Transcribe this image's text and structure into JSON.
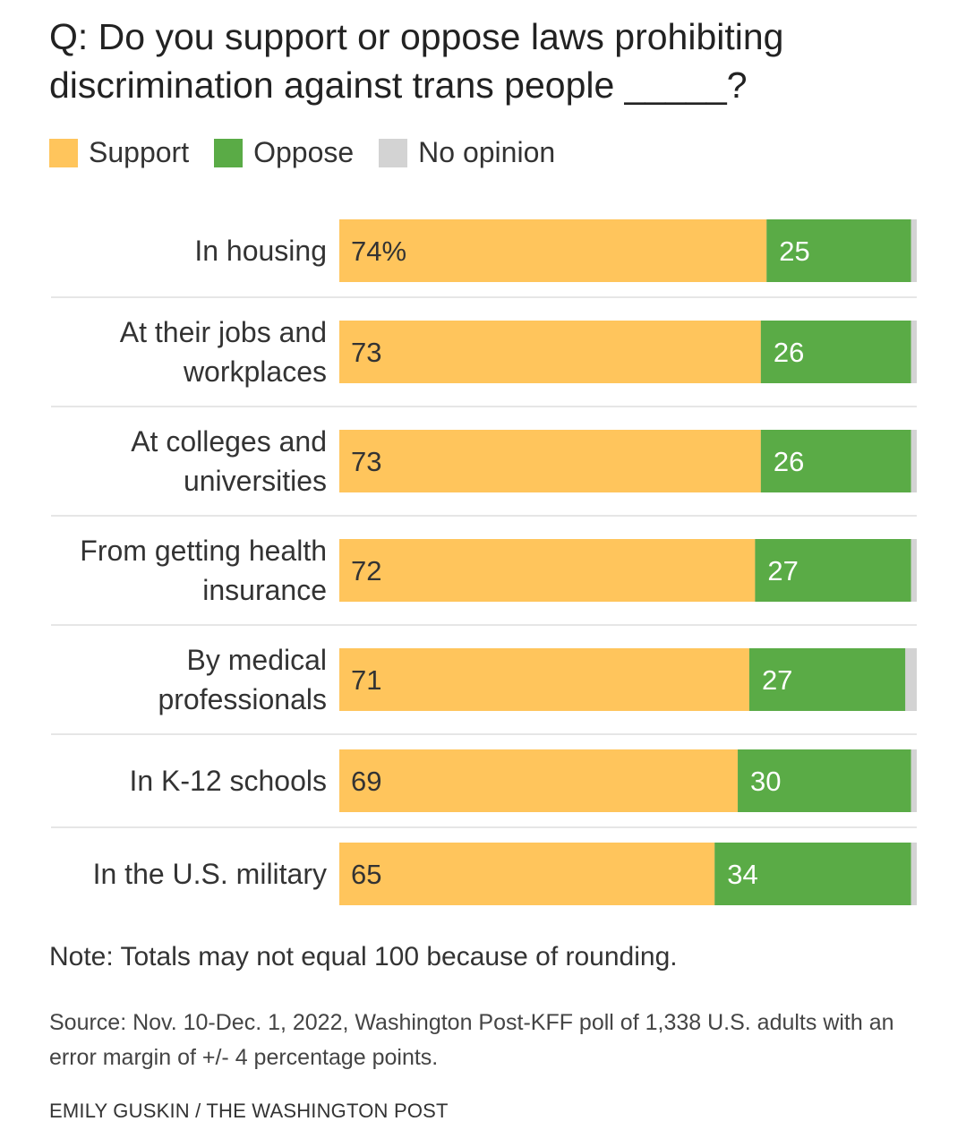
{
  "title": "Q: Do you support or oppose laws prohibiting discrimination against trans people _____?",
  "note": "Note: Totals may not equal 100 because of rounding.",
  "source": "Source: Nov. 10-Dec. 1, 2022, Washington Post-KFF poll of 1,338 U.S. adults with an error margin of +/- 4 percentage points.",
  "credit": "EMILY GUSKIN / THE WASHINGTON POST",
  "colors": {
    "support": "#ffc55c",
    "oppose": "#5aab46",
    "no_opinion": "#d3d3d3",
    "divider": "#dddddd"
  },
  "chart_data": {
    "type": "bar",
    "orientation": "horizontal",
    "stacked": true,
    "xlim": [
      0,
      100
    ],
    "legend": "top-left",
    "legend_entries": [
      "Support",
      "Oppose",
      "No opinion"
    ],
    "categories": [
      [
        "In housing"
      ],
      [
        "At their jobs and",
        "workplaces"
      ],
      [
        "At colleges and",
        "universities"
      ],
      [
        "From getting health",
        "insurance"
      ],
      [
        "By medical",
        "professionals"
      ],
      [
        "In K-12 schools"
      ],
      [
        "In the U.S. military"
      ]
    ],
    "series": [
      {
        "name": "Support",
        "values": [
          74,
          73,
          73,
          72,
          71,
          69,
          65
        ]
      },
      {
        "name": "Oppose",
        "values": [
          25,
          26,
          26,
          27,
          27,
          30,
          34
        ]
      },
      {
        "name": "No opinion",
        "values": [
          1,
          1,
          1,
          1,
          2,
          1,
          1
        ]
      }
    ],
    "support_labels": [
      "74%",
      "73",
      "73",
      "72",
      "71",
      "69",
      "65"
    ],
    "oppose_labels": [
      "25",
      "26",
      "26",
      "27",
      "27",
      "30",
      "34"
    ]
  }
}
